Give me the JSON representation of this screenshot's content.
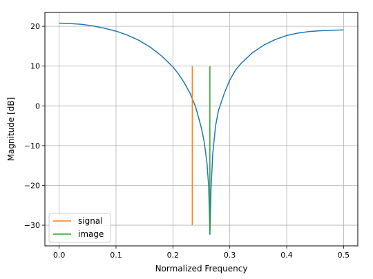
{
  "chart_data": {
    "type": "line",
    "title": "",
    "xlabel": "Normalized Frequency",
    "ylabel": "Magnitude [dB]",
    "xlim": [
      -0.025,
      0.525
    ],
    "ylim": [
      -35.2,
      23.5
    ],
    "grid": true,
    "legend_position": "lower-left",
    "xticks": [
      0.0,
      0.1,
      0.2,
      0.3,
      0.4,
      0.5
    ],
    "xtick_labels": [
      "0.0",
      "0.1",
      "0.2",
      "0.3",
      "0.4",
      "0.5"
    ],
    "yticks": [
      20,
      10,
      0,
      -10,
      -20,
      -30
    ],
    "ytick_labels": [
      "20",
      "10",
      "0",
      "−10",
      "−20",
      "−30"
    ],
    "response_curve": {
      "color": "#1f77b4",
      "x": [
        0.0,
        0.02,
        0.04,
        0.06,
        0.08,
        0.1,
        0.12,
        0.14,
        0.16,
        0.18,
        0.2,
        0.21,
        0.22,
        0.23,
        0.24,
        0.25,
        0.255,
        0.26,
        0.263,
        0.265,
        0.267,
        0.27,
        0.275,
        0.28,
        0.29,
        0.3,
        0.31,
        0.32,
        0.34,
        0.36,
        0.38,
        0.4,
        0.42,
        0.44,
        0.46,
        0.48,
        0.5
      ],
      "y": [
        20.8,
        20.7,
        20.5,
        20.1,
        19.5,
        18.8,
        17.8,
        16.5,
        14.8,
        12.6,
        9.8,
        8.0,
        5.8,
        3.2,
        -0.3,
        -5.5,
        -9.0,
        -14.5,
        -20.5,
        -32.3,
        -21.0,
        -12.0,
        -5.0,
        -1.2,
        3.0,
        6.5,
        9.0,
        10.7,
        13.4,
        15.3,
        16.7,
        17.7,
        18.3,
        18.7,
        18.9,
        19.0,
        19.1
      ]
    },
    "series": [
      {
        "name": "signal",
        "color": "#ff7f0e",
        "x": [
          0.234,
          0.234
        ],
        "y": [
          -30,
          10
        ]
      },
      {
        "name": "image",
        "color": "#2ca02c",
        "x": [
          0.265,
          0.265
        ],
        "y": [
          -32,
          10
        ]
      }
    ]
  }
}
